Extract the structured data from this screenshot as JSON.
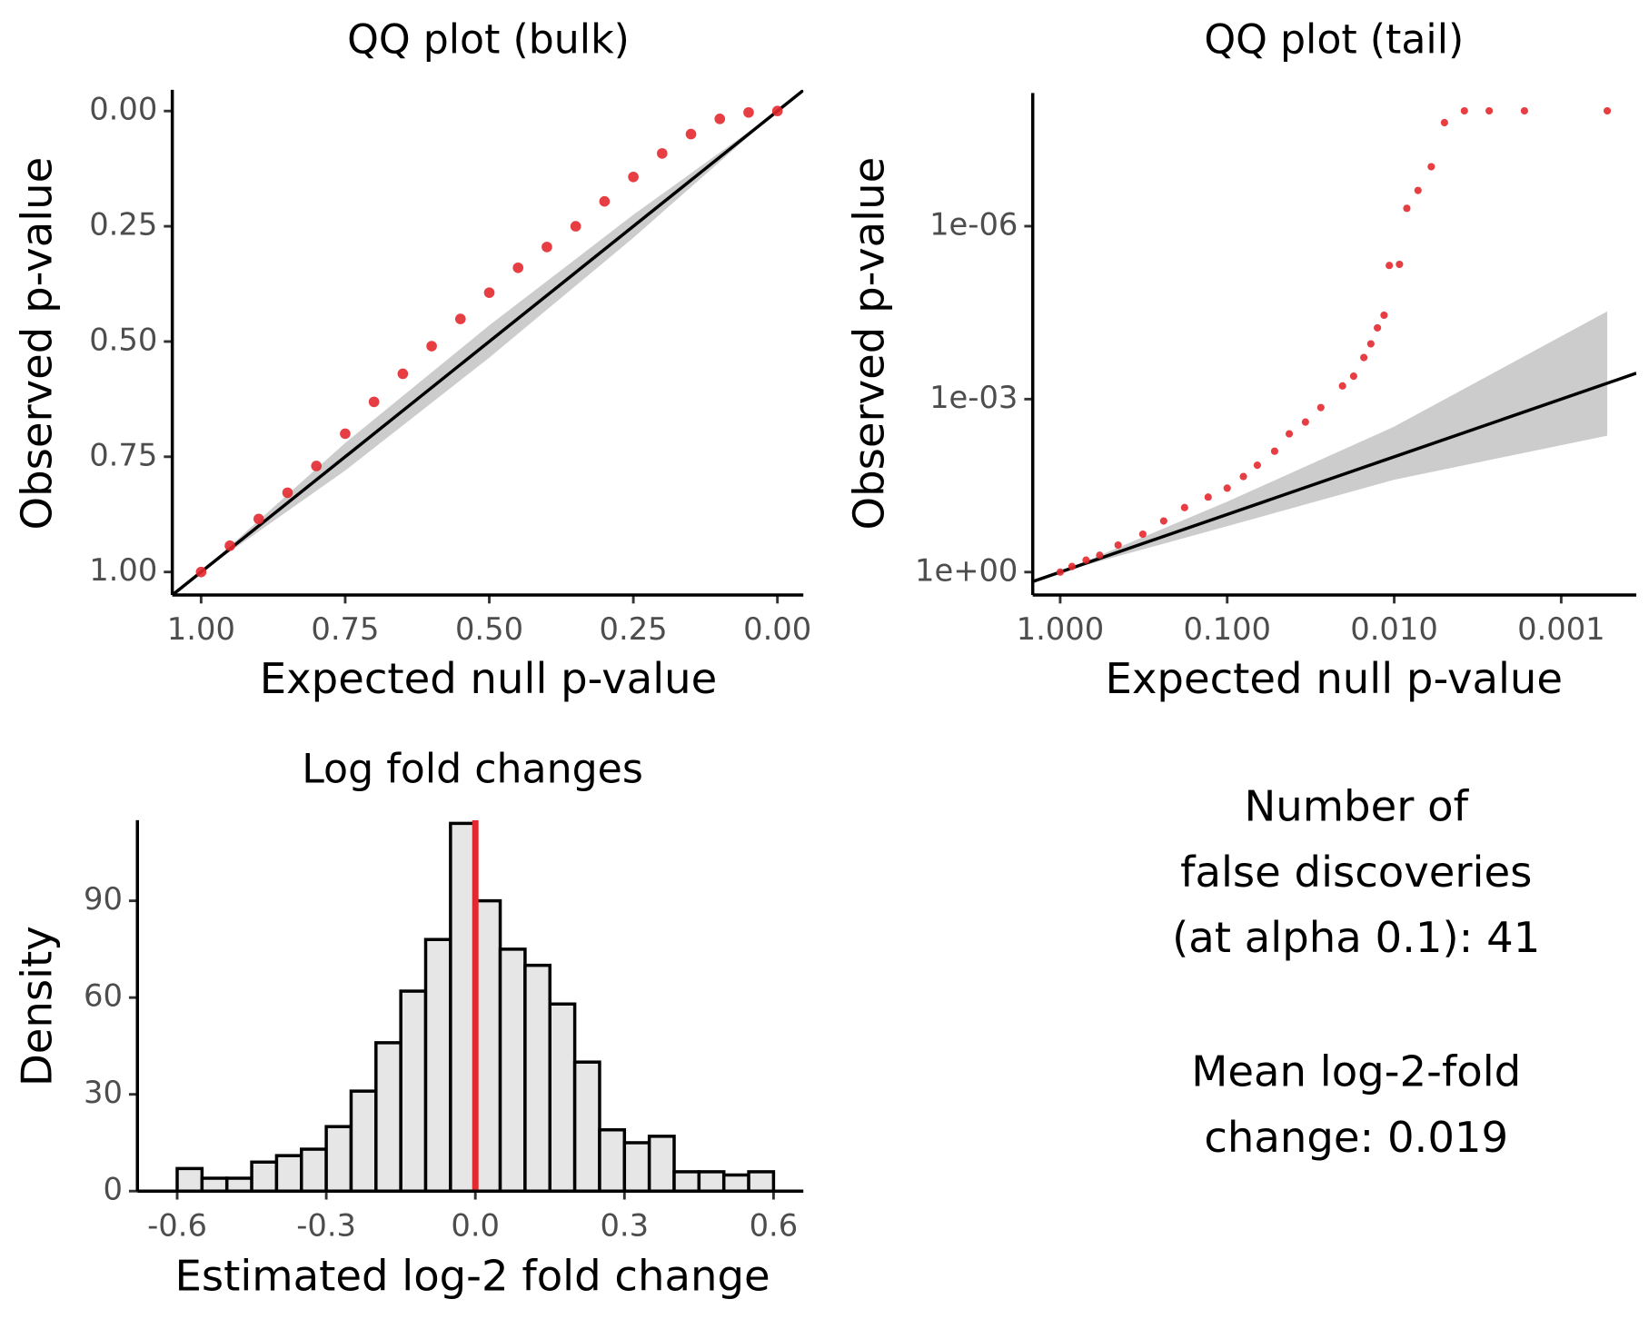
{
  "chart_data": [
    {
      "type": "scatter",
      "title": "QQ plot (bulk)",
      "x_label": "Expected null p-value",
      "y_label": "Observed p-value",
      "x": [
        1.0,
        0.95,
        0.9,
        0.85,
        0.8,
        0.75,
        0.7,
        0.65,
        0.6,
        0.55,
        0.5,
        0.45,
        0.4,
        0.35,
        0.3,
        0.25,
        0.2,
        0.15,
        0.1,
        0.05,
        0.0
      ],
      "series": [
        {
          "color": "#e3292f",
          "values": [
            1.0,
            0.943,
            0.885,
            0.828,
            0.77,
            0.7,
            0.631,
            0.57,
            0.51,
            0.451,
            0.394,
            0.34,
            0.295,
            0.25,
            0.196,
            0.143,
            0.092,
            0.05,
            0.017,
            0.003,
            0.0
          ]
        }
      ],
      "reference_line": {
        "slope": 1,
        "intercept": 0
      },
      "band": {
        "x": [
          1.0,
          0.75,
          0.5,
          0.25,
          0.0
        ],
        "lower": [
          1.0,
          0.72,
          0.465,
          0.225,
          0.0
        ],
        "upper": [
          1.0,
          0.78,
          0.535,
          0.275,
          0.0
        ]
      },
      "xlim": [
        1.05,
        -0.045
      ],
      "ylim": [
        1.05,
        -0.046
      ],
      "xlog": false,
      "ylog": false,
      "xticks": [
        {
          "value": 1,
          "label": "1.00"
        },
        0.75,
        {
          "value": 0.5,
          "label": "0.50"
        },
        0.25,
        {
          "value": 0,
          "label": "0.00"
        }
      ],
      "yticks": [
        {
          "value": 0,
          "label": "0.00"
        },
        0.25,
        {
          "value": 0.5,
          "label": "0.50"
        },
        0.75,
        {
          "value": 1,
          "label": "1.00"
        }
      ]
    },
    {
      "type": "scatter",
      "title": "QQ plot (tail)",
      "x_label": "Expected null p-value",
      "y_label": "Observed p-value",
      "x": [
        1.0,
        0.85,
        0.7,
        0.58,
        0.45,
        0.32,
        0.24,
        0.18,
        0.13,
        0.1,
        0.08,
        0.066,
        0.052,
        0.0425,
        0.034,
        0.0275,
        0.0204,
        0.0175,
        0.0152,
        0.0138,
        0.0126,
        0.0115,
        0.0107,
        0.0093,
        0.0084,
        0.0072,
        0.006,
        0.005,
        0.0038,
        0.0027,
        0.00166,
        0.00053
      ],
      "series": [
        {
          "color": "#e3292f",
          "values": [
            1.0,
            0.8,
            0.62,
            0.51,
            0.34,
            0.22,
            0.13,
            0.076,
            0.05,
            0.035,
            0.022,
            0.014,
            0.008,
            0.004,
            0.0025,
            0.0014,
            0.00059,
            0.0004,
            0.00019,
            0.00011,
            5.8e-05,
            3.5e-05,
            4.8e-06,
            4.6e-06,
            4.9e-07,
            2.4e-07,
            9.3e-08,
            1.6e-08,
            1e-08,
            1e-08,
            1e-08,
            1e-08
          ]
        }
      ],
      "reference_line": {
        "slope": 1,
        "intercept": 0
      },
      "band": {
        "x": [
          1.0,
          0.1,
          0.01,
          0.00053
        ],
        "lower": [
          1.0,
          0.06,
          0.003,
          3e-05
        ],
        "upper": [
          1.0,
          0.16,
          0.025,
          0.0043
        ]
      },
      "xlim": [
        1.46,
        0.000355
      ],
      "ylim": [
        2.5,
        4.9e-09
      ],
      "xlog": true,
      "ylog": true,
      "xticks": [
        {
          "value": 1,
          "label": "1.000"
        },
        {
          "value": 0.1,
          "label": "0.100"
        },
        {
          "value": 0.01,
          "label": "0.010"
        },
        {
          "value": 0.001,
          "label": "0.001"
        }
      ],
      "yticks": [
        {
          "value": 1,
          "label": "1e+00"
        },
        {
          "value": 0.001,
          "label": "1e-03"
        },
        {
          "value": 1e-06,
          "label": "1e-06"
        }
      ]
    },
    {
      "type": "histogram",
      "title": "Log fold changes",
      "x_label": "Estimated log-2 fold change",
      "y_label": "Density",
      "bins": [
        -0.6,
        -0.55,
        -0.5,
        -0.45,
        -0.4,
        -0.35,
        -0.3,
        -0.25,
        -0.2,
        -0.15,
        -0.1,
        -0.05,
        0.0,
        0.05,
        0.1,
        0.15,
        0.2,
        0.25,
        0.3,
        0.35,
        0.4,
        0.45,
        0.5,
        0.55,
        0.6
      ],
      "values": [
        7,
        4,
        4,
        9,
        11,
        13,
        20,
        31,
        46,
        62,
        78,
        114,
        90,
        75,
        70,
        58,
        40,
        19,
        15,
        17,
        6,
        6,
        5,
        6
      ],
      "color": "#e6e6e6",
      "vline": 0,
      "vline_color": "#e3292f",
      "xlim": [
        -0.68,
        0.66
      ],
      "ylim": [
        0,
        115
      ],
      "xlog": false,
      "ylog": false,
      "xticks": [
        -0.6,
        -0.3,
        {
          "value": 0,
          "label": "0.0"
        },
        0.3,
        0.6
      ],
      "yticks": [
        0,
        30,
        60,
        90
      ]
    }
  ],
  "text_panel": {
    "paragraphs": [
      [
        "Number of",
        "false discoveries",
        "(at alpha 0.1): 41"
      ],
      [
        "Mean log-2-fold",
        "change: 0.019"
      ]
    ]
  }
}
